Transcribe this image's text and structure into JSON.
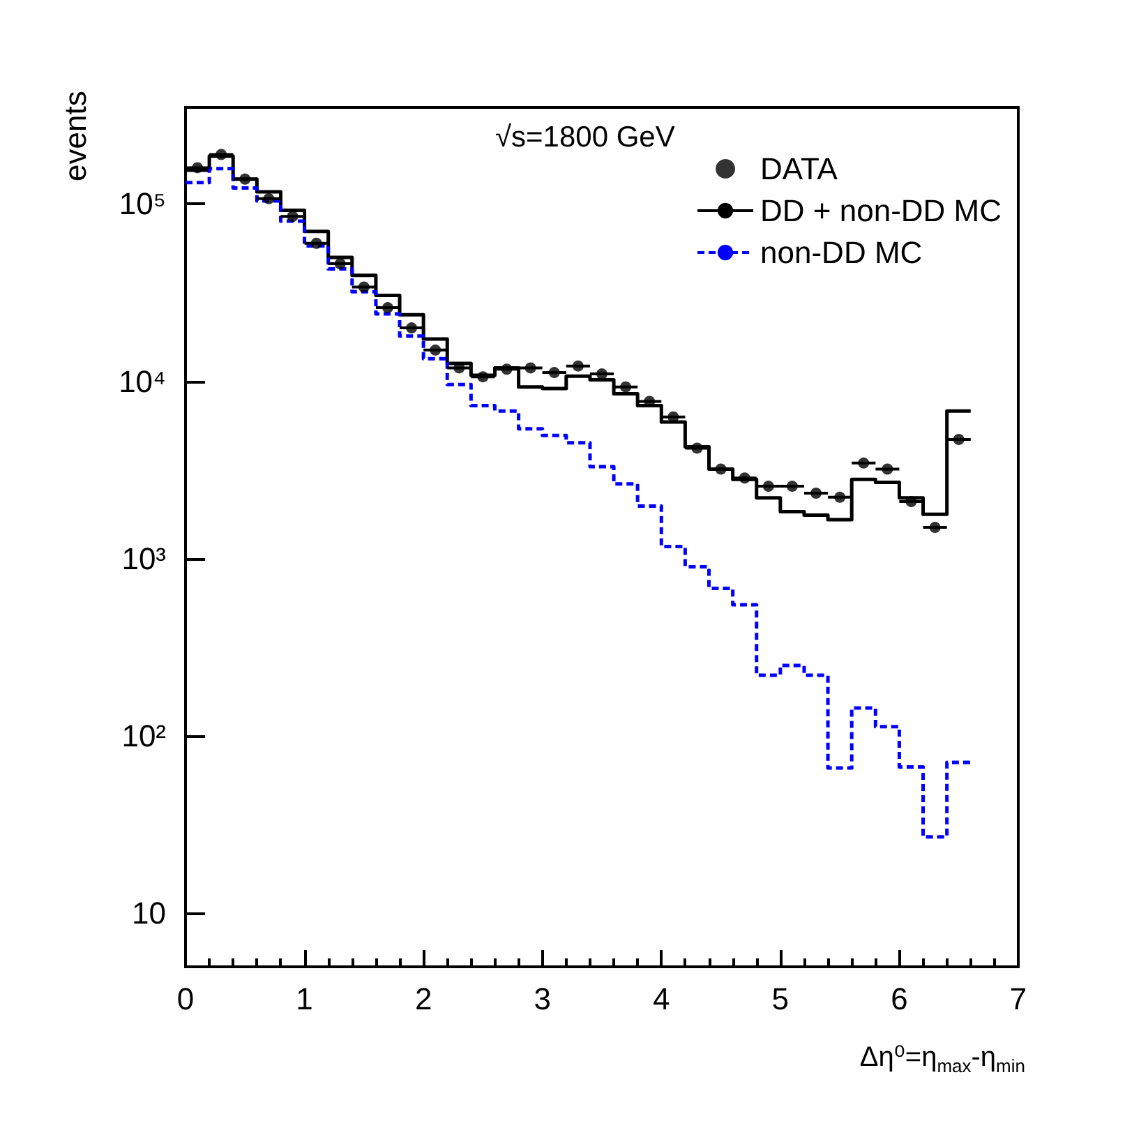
{
  "chart_data": {
    "type": "histogram",
    "xlabel": "Δη⁰=η$_{max}$-η$_{min}$",
    "ylabel": "events",
    "annotations": [
      "√s=1800 GeV"
    ],
    "bins": [
      0,
      0.2,
      0.4,
      0.6,
      0.8,
      1,
      1.2,
      1.4,
      1.6,
      1.8,
      2,
      2.2,
      2.4,
      2.6,
      2.8,
      3,
      3.2,
      3.4,
      3.6,
      3.8,
      4,
      4.2,
      4.4,
      4.6,
      4.8,
      5,
      5.2,
      5.4,
      5.6,
      5.8,
      6,
      6.2,
      6.4,
      6.6
    ],
    "series": [
      {
        "name": "DATA",
        "type": "scatter",
        "color": "#000000",
        "marker": "circle",
        "x": [
          0.1,
          0.3,
          0.5,
          0.7,
          0.9,
          1.1,
          1.3,
          1.5,
          1.7,
          1.9,
          2.1,
          2.3,
          2.5,
          2.7,
          2.9,
          3.1,
          3.3,
          3.5,
          3.7,
          3.9,
          4.1,
          4.3,
          4.5,
          4.7,
          4.9,
          5.1,
          5.3,
          5.5,
          5.7,
          5.9,
          6.1,
          6.3,
          6.5
        ],
        "values": [
          160000,
          190000,
          138000,
          107000,
          85000,
          60000,
          46000,
          34000,
          26000,
          20000,
          15000,
          11900,
          10600,
          11700,
          11900,
          11200,
          12200,
          11000,
          9300,
          7700,
          6300,
          4200,
          3200,
          2850,
          2560,
          2560,
          2340,
          2220,
          3460,
          3200,
          2100,
          1500,
          4700
        ],
        "xerrors": [
          0.1,
          0.1,
          0.1,
          0.1,
          0.1,
          0.1,
          0.1,
          0.1,
          0.1,
          0.1,
          0.1,
          0.1,
          0.1,
          0.1,
          0.1,
          0.1,
          0.1,
          0.1,
          0.1,
          0.1,
          0.1,
          0.1,
          0.1,
          0.1,
          0.1,
          0.1,
          0.1,
          0.1,
          0.1,
          0.1,
          0.1,
          0.1,
          0.1
        ]
      },
      {
        "name": "DD + non-DD MC",
        "color": "#000000",
        "line_style": "solid",
        "values": [
          155000,
          186000,
          138000,
          117000,
          92000,
          70000,
          50000,
          39600,
          30500,
          23700,
          17300,
          12600,
          10800,
          11900,
          9300,
          9100,
          10700,
          10200,
          8500,
          7300,
          5900,
          4270,
          3200,
          2800,
          2200,
          1840,
          1760,
          1660,
          2800,
          2690,
          2200,
          1780,
          6800
        ]
      },
      {
        "name": "non-DD MC",
        "color": "#0000ff",
        "line_style": "dashed",
        "values": [
          132000,
          158000,
          123000,
          104000,
          80000,
          58000,
          43000,
          32000,
          24000,
          18000,
          13400,
          9600,
          7300,
          6800,
          5400,
          4950,
          4500,
          3300,
          2640,
          1980,
          1170,
          900,
          680,
          550,
          220,
          250,
          220,
          66,
          144,
          113,
          67,
          27,
          71
        ]
      }
    ],
    "xlim": [
      0,
      7
    ],
    "xticks": [
      0,
      1,
      2,
      3,
      4,
      5,
      6,
      7
    ],
    "ylim": [
      5,
      350000
    ],
    "log": true,
    "yticks": [
      {
        "value": 10,
        "label": "10"
      },
      {
        "value": 100,
        "label": "10²"
      },
      {
        "value": 1000,
        "label": "10³"
      },
      {
        "value": 10000,
        "label": "10⁴"
      },
      {
        "value": 100000,
        "label": "10⁵"
      }
    ],
    "legend": "top right"
  }
}
